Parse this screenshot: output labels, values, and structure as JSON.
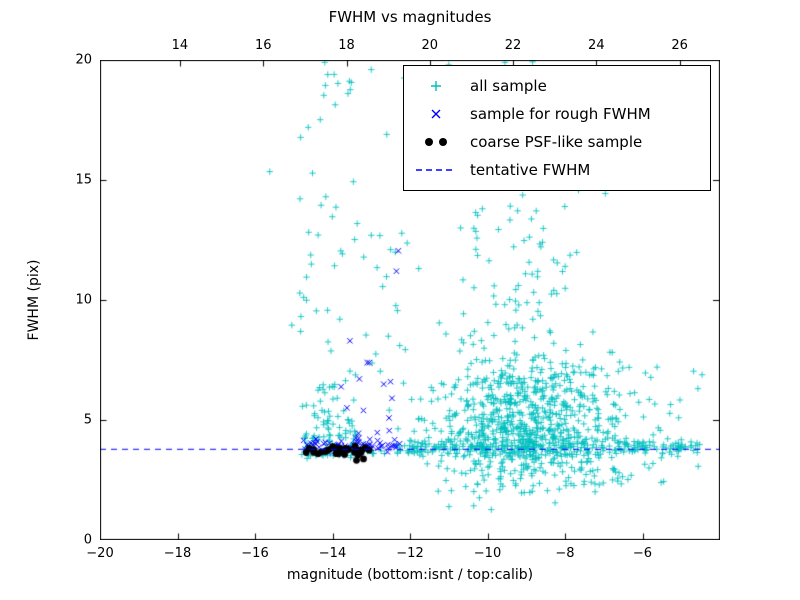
{
  "chart_data": {
    "type": "scatter",
    "title": "FWHM vs magnitudes",
    "xlabel": "magnitude (bottom:isnt / top:calib)",
    "ylabel": "FWHM (pix)",
    "xlim": [
      -20,
      -4
    ],
    "ylim": [
      0,
      20
    ],
    "x_ticks_bottom": [
      -20,
      -18,
      -16,
      -14,
      -12,
      -10,
      -8,
      -6
    ],
    "top_axis": {
      "lim": [
        12.08,
        26.97
      ],
      "ticks": [
        14,
        16,
        18,
        20,
        22,
        24,
        26
      ]
    },
    "y_ticks": [
      0,
      5,
      10,
      15,
      20
    ],
    "grid": false,
    "legend_position": "upper right",
    "tentative_fwhm": 3.8,
    "seed": 1234,
    "series": [
      {
        "name": "all sample",
        "marker": "plus",
        "color": "#00bfbf",
        "clusters": [
          {
            "n": 85,
            "x": {
              "k": "u",
              "a": -14.85,
              "b": -13.4
            },
            "y": {
              "k": "p",
              "a": 3.5,
              "b": 20,
              "p": 2.6
            }
          },
          {
            "n": 55,
            "x": {
              "k": "u",
              "a": -14.8,
              "b": -13.45
            },
            "y": {
              "k": "g",
              "mu": 4.6,
              "s": 1.0,
              "lo": 3.4,
              "hi": 8
            }
          },
          {
            "n": 42,
            "x": {
              "k": "u",
              "a": -13.4,
              "b": -11.6
            },
            "y": {
              "k": "p",
              "a": 3.6,
              "b": 13.5,
              "p": 2.2
            }
          },
          {
            "n": 720,
            "x": {
              "k": "g",
              "mu": -9.0,
              "s": 1.25,
              "lo": -11.8,
              "hi": -4.6
            },
            "y": {
              "k": "g",
              "mu": 4.6,
              "s": 1.35,
              "lo": 1.9,
              "hi": 9.5
            }
          },
          {
            "n": 160,
            "x": {
              "k": "g",
              "mu": -9.2,
              "s": 0.95,
              "lo": -11.5,
              "hi": -6.6
            },
            "y": {
              "k": "p",
              "a": 6.5,
              "b": 20,
              "p": 1.9
            }
          },
          {
            "n": 280,
            "x": {
              "k": "u",
              "a": -12.4,
              "b": -4.5
            },
            "y": {
              "k": "g",
              "mu": 3.85,
              "s": 0.17,
              "lo": 3.45,
              "hi": 4.4
            }
          },
          {
            "n": 45,
            "x": {
              "k": "u",
              "a": -7.3,
              "b": -4.4
            },
            "y": {
              "k": "p",
              "a": 2.3,
              "b": 7.5,
              "p": 1.7
            }
          },
          {
            "n": 12,
            "x": {
              "k": "u",
              "a": -11.3,
              "b": -7.0
            },
            "y": {
              "k": "u",
              "a": 1.1,
              "b": 2.5
            }
          }
        ],
        "points": [
          [
            -15.62,
            15.35
          ],
          [
            -14.2,
            19.9
          ],
          [
            -13.6,
            18.6
          ],
          [
            -13.0,
            19.6
          ],
          [
            -12.15,
            19.25
          ],
          [
            -12.6,
            16.9
          ],
          [
            -12.85,
            11.35
          ],
          [
            -12.5,
            12.1
          ],
          [
            -11.0,
            19.8
          ],
          [
            -10.35,
            19.3
          ],
          [
            -9.55,
            19.9
          ],
          [
            -15.05,
            8.95
          ]
        ]
      },
      {
        "name": "sample for rough FWHM",
        "marker": "x",
        "color": "#0000ff",
        "clusters": [
          {
            "n": 66,
            "x": {
              "k": "u",
              "a": -14.75,
              "b": -12.25
            },
            "y": {
              "k": "g",
              "mu": 3.92,
              "s": 0.14,
              "lo": 3.6,
              "hi": 4.4
            }
          },
          {
            "n": 13,
            "x": {
              "k": "u",
              "a": -13.8,
              "b": -12.05
            },
            "y": {
              "k": "p",
              "a": 4.4,
              "b": 7.5,
              "p": 1.4
            }
          }
        ],
        "points": [
          [
            -12.35,
            11.2
          ],
          [
            -12.3,
            12.05
          ],
          [
            -13.55,
            8.3
          ]
        ]
      },
      {
        "name": "coarse PSF-like sample",
        "marker": "dot",
        "color": "#000000",
        "clusters": [
          {
            "n": 34,
            "x": {
              "k": "u",
              "a": -14.7,
              "b": -13.05
            },
            "y": {
              "k": "g",
              "mu": 3.72,
              "s": 0.1,
              "lo": 3.5,
              "hi": 3.95
            }
          }
        ],
        "points": [
          [
            -13.38,
            3.32
          ],
          [
            -13.2,
            3.38
          ]
        ]
      },
      {
        "name": "tentative FWHM",
        "marker": "dashed-line",
        "kind": "hline",
        "y": 3.8,
        "color": "#0000ff"
      }
    ]
  }
}
